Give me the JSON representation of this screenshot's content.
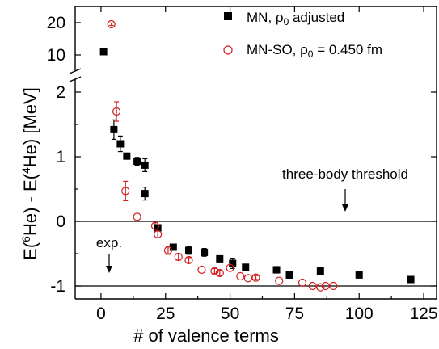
{
  "chart_data": {
    "type": "scatter",
    "xlabel": "# of valence terms",
    "ylabel": "E(6He) - E(4He) [MeV]",
    "ylabel_parts": {
      "a": "E(",
      "sup1": "6",
      "b": "He) - E(",
      "sup2": "4",
      "c": "He) [MeV]"
    },
    "xlim": [
      -10,
      130
    ],
    "x_ticks": [
      "0",
      "25",
      "50",
      "75",
      "100",
      "125"
    ],
    "ylim_lower": [
      -1.2,
      2.2
    ],
    "ylim_upper": [
      5,
      25
    ],
    "y_ticks_lower": [
      "-1",
      "0",
      "1",
      "2"
    ],
    "y_ticks_upper": [
      "10",
      "20"
    ],
    "axis_break": true,
    "legend_position": "top-right",
    "colors": {
      "mn": "#000000",
      "mnso": "#d21e1e"
    },
    "series": [
      {
        "name": "MN, ρ0 adjusted",
        "legend_parts": {
          "a": "MN, ρ",
          "sub": "0",
          "b": " adjusted"
        },
        "marker": "square",
        "points": [
          {
            "x": 1,
            "y": 11,
            "err": 0
          },
          {
            "x": 5,
            "y": 1.42,
            "err": 0.15
          },
          {
            "x": 7.5,
            "y": 1.2,
            "err": 0.12
          },
          {
            "x": 10,
            "y": 1.01,
            "err": 0
          },
          {
            "x": 14,
            "y": 0.93,
            "err": 0.06
          },
          {
            "x": 17,
            "y": 0.87,
            "err": 0.1
          },
          {
            "x": 17,
            "y": 0.43,
            "err": 0.1
          },
          {
            "x": 22,
            "y": -0.1,
            "err": 0.03
          },
          {
            "x": 28,
            "y": -0.4,
            "err": 0
          },
          {
            "x": 34,
            "y": -0.45,
            "err": 0.06
          },
          {
            "x": 40,
            "y": -0.48,
            "err": 0.06
          },
          {
            "x": 46,
            "y": -0.58,
            "err": 0.03
          },
          {
            "x": 51,
            "y": -0.65,
            "err": 0.08
          },
          {
            "x": 56,
            "y": -0.71,
            "err": 0.03
          },
          {
            "x": 68,
            "y": -0.75,
            "err": 0.05
          },
          {
            "x": 73,
            "y": -0.83,
            "err": 0.05
          },
          {
            "x": 85,
            "y": -0.77,
            "err": 0.05
          },
          {
            "x": 100,
            "y": -0.83,
            "err": 0.04
          },
          {
            "x": 120,
            "y": -0.9,
            "err": 0.03
          }
        ]
      },
      {
        "name": "MN-SO, ρ0 = 0.450 fm",
        "legend_parts": {
          "a": "MN-SO, ρ",
          "sub": "0",
          "b": " = 0.450 fm"
        },
        "marker": "circle",
        "points": [
          {
            "x": 4,
            "y": 19.5,
            "err": 0.4
          },
          {
            "x": 6,
            "y": 1.7,
            "err": 0.15
          },
          {
            "x": 9.5,
            "y": 0.47,
            "err": 0.15
          },
          {
            "x": 14,
            "y": 0.07,
            "err": 0
          },
          {
            "x": 21,
            "y": -0.07,
            "err": 0.05
          },
          {
            "x": 22,
            "y": -0.2,
            "err": 0.05
          },
          {
            "x": 26,
            "y": -0.45,
            "err": 0.06
          },
          {
            "x": 30,
            "y": -0.55,
            "err": 0.05
          },
          {
            "x": 34,
            "y": -0.6,
            "err": 0.04
          },
          {
            "x": 39,
            "y": -0.75,
            "err": 0
          },
          {
            "x": 44,
            "y": -0.77,
            "err": 0.04
          },
          {
            "x": 46,
            "y": -0.8,
            "err": 0.04
          },
          {
            "x": 50,
            "y": -0.72,
            "err": 0
          },
          {
            "x": 54,
            "y": -0.85,
            "err": 0
          },
          {
            "x": 57,
            "y": -0.88,
            "err": 0
          },
          {
            "x": 60,
            "y": -0.87,
            "err": 0.03
          },
          {
            "x": 69,
            "y": -0.92,
            "err": 0
          },
          {
            "x": 78,
            "y": -0.95,
            "err": 0
          },
          {
            "x": 82,
            "y": -1.0,
            "err": 0
          },
          {
            "x": 85,
            "y": -1.02,
            "err": 0
          },
          {
            "x": 87,
            "y": -1.0,
            "err": 0
          },
          {
            "x": 90,
            "y": -1.0,
            "err": 0
          }
        ]
      }
    ],
    "reference_lines": [
      {
        "y": 0,
        "label": "three-body threshold"
      },
      {
        "y": -1,
        "label": "exp."
      }
    ]
  }
}
